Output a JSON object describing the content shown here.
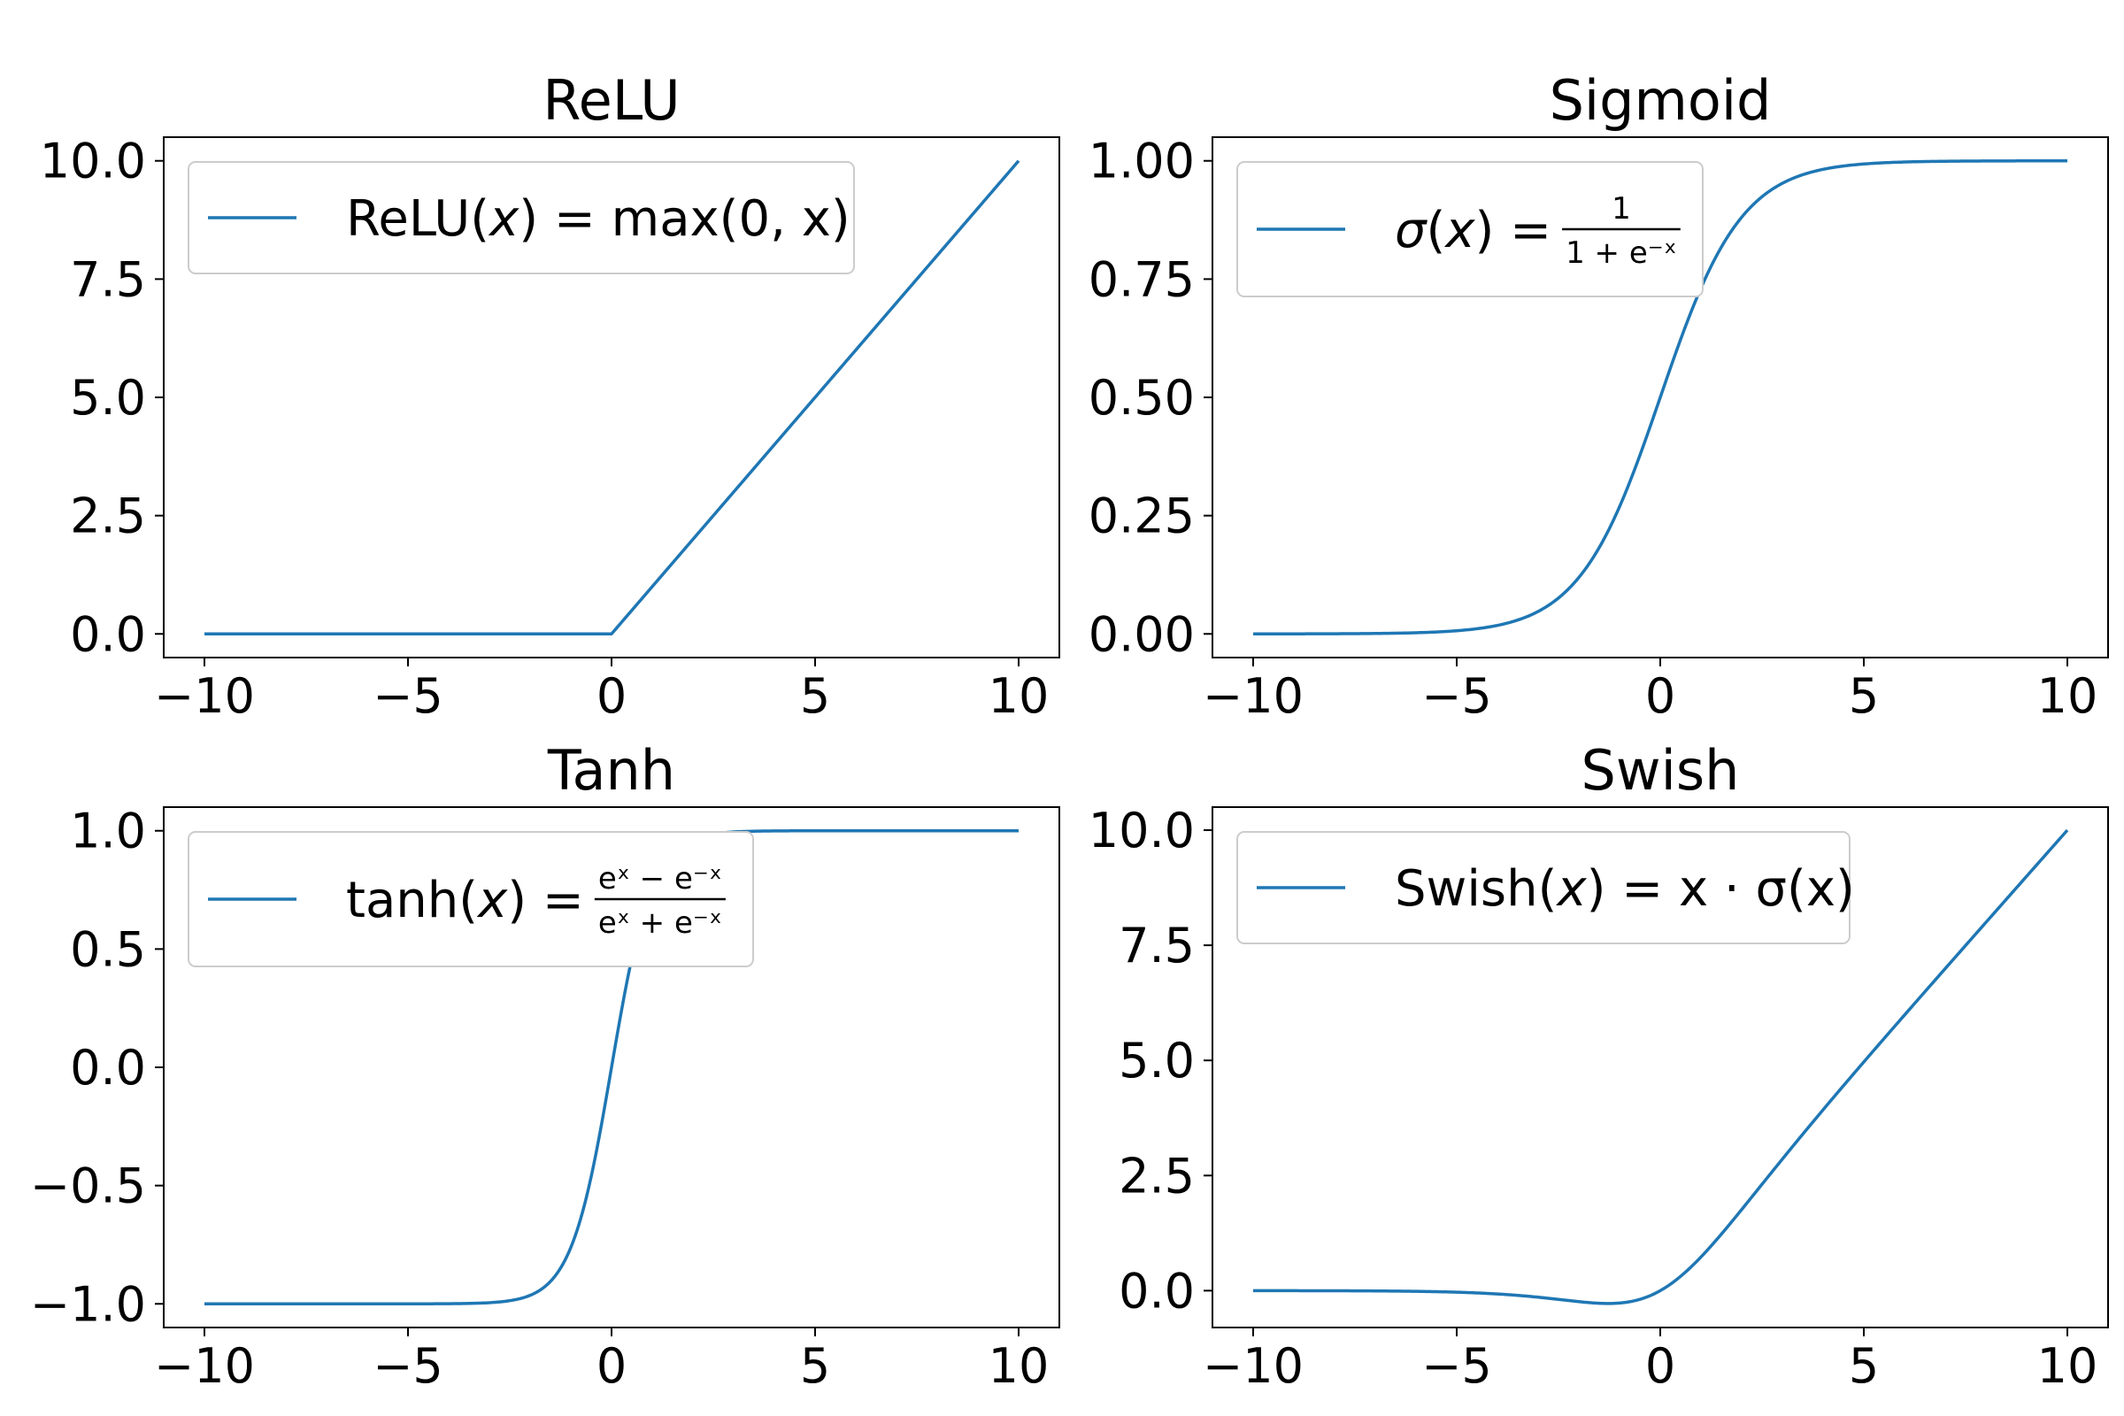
{
  "colors": {
    "series": "#1f77b4"
  },
  "chart_data": [
    {
      "type": "line",
      "title": "ReLU",
      "function": "relu",
      "xlim": [
        -11,
        11
      ],
      "ylim": [
        -0.5,
        10.5
      ],
      "x_ticks": [
        -10,
        -5,
        0,
        5,
        10
      ],
      "x_tick_labels": [
        "−10",
        "−5",
        "0",
        "5",
        "10"
      ],
      "y_ticks": [
        0,
        2.5,
        5,
        7.5,
        10
      ],
      "y_tick_labels": [
        "0.0",
        "2.5",
        "5.0",
        "7.5",
        "10.0"
      ],
      "legend": {
        "placement": "upper-left",
        "name": "ReLU",
        "arg": "x",
        "equals": "=",
        "rhs": "max(0, x)"
      },
      "series": [
        {
          "x": [
            -10,
            -5,
            0,
            5,
            10
          ],
          "y": [
            0,
            0,
            0,
            5,
            10
          ]
        }
      ],
      "grid": false
    },
    {
      "type": "line",
      "title": "Sigmoid",
      "function": "sigmoid",
      "xlim": [
        -11,
        11
      ],
      "ylim": [
        -0.05,
        1.05
      ],
      "x_ticks": [
        -10,
        -5,
        0,
        5,
        10
      ],
      "x_tick_labels": [
        "−10",
        "−5",
        "0",
        "5",
        "10"
      ],
      "y_ticks": [
        0,
        0.25,
        0.5,
        0.75,
        1.0
      ],
      "y_tick_labels": [
        "0.00",
        "0.25",
        "0.50",
        "0.75",
        "1.00"
      ],
      "legend": {
        "placement": "upper-left",
        "name": "σ",
        "arg": "x",
        "equals": "=",
        "numerator": "1",
        "denominator": "1 + e⁻ˣ"
      },
      "series": [
        {
          "x": [
            -10,
            -5,
            -2,
            0,
            2,
            5,
            10
          ],
          "y": [
            0.0,
            0.007,
            0.12,
            0.5,
            0.88,
            0.993,
            1.0
          ]
        }
      ],
      "grid": false
    },
    {
      "type": "line",
      "title": "Tanh",
      "function": "tanh",
      "xlim": [
        -11,
        11
      ],
      "ylim": [
        -1.1,
        1.1
      ],
      "x_ticks": [
        -10,
        -5,
        0,
        5,
        10
      ],
      "x_tick_labels": [
        "−10",
        "−5",
        "0",
        "5",
        "10"
      ],
      "y_ticks": [
        -1.0,
        -0.5,
        0.0,
        0.5,
        1.0
      ],
      "y_tick_labels": [
        "−1.0",
        "−0.5",
        "0.0",
        "0.5",
        "1.0"
      ],
      "legend": {
        "placement": "upper-left",
        "name": "tanh",
        "arg": "x",
        "equals": "=",
        "numerator": "eˣ − e⁻ˣ",
        "denominator": "eˣ + e⁻ˣ"
      },
      "series": [
        {
          "x": [
            -10,
            -3,
            -1,
            0,
            1,
            3,
            10
          ],
          "y": [
            -1.0,
            -0.995,
            -0.76,
            0.0,
            0.76,
            0.995,
            1.0
          ]
        }
      ],
      "grid": false
    },
    {
      "type": "line",
      "title": "Swish",
      "function": "swish",
      "xlim": [
        -11,
        11
      ],
      "ylim": [
        -0.8,
        10.5
      ],
      "x_ticks": [
        -10,
        -5,
        0,
        5,
        10
      ],
      "x_tick_labels": [
        "−10",
        "−5",
        "0",
        "5",
        "10"
      ],
      "y_ticks": [
        0,
        2.5,
        5,
        7.5,
        10
      ],
      "y_tick_labels": [
        "0.0",
        "2.5",
        "5.0",
        "7.5",
        "10.0"
      ],
      "legend": {
        "placement": "upper-left",
        "name": "Swish",
        "arg": "x",
        "equals": "=",
        "rhs": "x · σ(x)"
      },
      "series": [
        {
          "x": [
            -10,
            -5,
            -1.28,
            0,
            2,
            5,
            10
          ],
          "y": [
            0.0,
            -0.03,
            -0.28,
            0.0,
            1.76,
            4.97,
            10.0
          ]
        }
      ],
      "grid": false
    }
  ]
}
